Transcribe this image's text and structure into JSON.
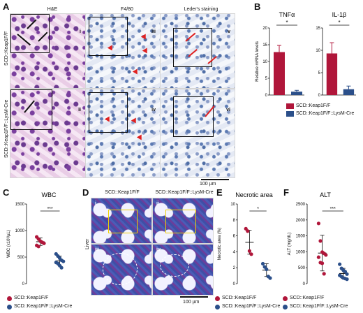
{
  "panels": {
    "A": "A",
    "B": "B",
    "C": "C",
    "D": "D",
    "E": "E",
    "F": "F"
  },
  "panel_a": {
    "col_headers": [
      "H&E",
      "F4/80",
      "Leder's staining"
    ],
    "row_labels": [
      "SCD::Keap1F/F",
      "SCD::Keap1F/F::LysM-Cre"
    ],
    "tile_numerals": [
      "i",
      "iii",
      "v",
      "ii",
      "iv",
      "vi"
    ],
    "scale": "100 µm"
  },
  "panel_d": {
    "col_headers": [
      "SCD::Keap1F/F",
      "SCD::Keap1F/F::LysM-Cre"
    ],
    "side_label": "Liver",
    "tile_numerals": [
      "i",
      "ii",
      "iii",
      "iv"
    ],
    "scale": "100 µm"
  },
  "legend_b": [
    {
      "label": "SCD::Keap1F/F",
      "color": "#b0163a"
    },
    {
      "label": "SCD::Keap1F/F::LysM-Cre",
      "color": "#2b4f8a"
    }
  ],
  "legend_bottom": [
    {
      "label": "SCD::Keap1F/F",
      "color": "#b0163a"
    },
    {
      "label": "SCD::Keap1F/F::LysM-Cre",
      "color": "#2b4f8a"
    }
  ],
  "chart_data": [
    {
      "type": "bar",
      "title": "TNFα",
      "ylabel": "Relative mRNA levels",
      "categories": [
        "SCD::Keap1F/F",
        "SCD::Keap1F/F::LysM-Cre"
      ],
      "values": [
        12.8,
        1.0
      ],
      "errors": [
        2.0,
        0.4
      ],
      "ylim": [
        0,
        20
      ],
      "yticks": [
        "0",
        "5",
        "10",
        "15",
        "20"
      ],
      "significance": "*"
    },
    {
      "type": "bar",
      "title": "IL-1β",
      "ylabel": "",
      "categories": [
        "SCD::Keap1F/F",
        "SCD::Keap1F/F::LysM-Cre"
      ],
      "values": [
        9.3,
        1.3
      ],
      "errors": [
        2.4,
        0.7
      ],
      "ylim": [
        0,
        15
      ],
      "yticks": [
        "0",
        "5",
        "10",
        "15"
      ],
      "significance": "*"
    },
    {
      "type": "scatter",
      "title": "WBC",
      "ylabel": "WBC (x10³/µL)",
      "ylim": [
        0,
        1500
      ],
      "yticks": [
        "0",
        "500",
        "1000",
        "1500"
      ],
      "groups": [
        {
          "name": "SCD::Keap1F/F",
          "values": [
            880,
            840,
            800,
            780,
            760,
            720,
            700
          ],
          "mean": 790,
          "sd": 70
        },
        {
          "name": "SCD::Keap1F/F::LysM-Cre",
          "values": [
            560,
            520,
            480,
            440,
            420,
            400,
            380,
            340,
            300
          ],
          "mean": 430,
          "sd": 90
        }
      ],
      "significance": "***"
    },
    {
      "type": "scatter",
      "title": "Necrotic area",
      "ylabel": "Necrotic area (%)",
      "ylim": [
        0,
        10
      ],
      "yticks": [
        "0",
        "2",
        "4",
        "6",
        "8",
        "10"
      ],
      "groups": [
        {
          "name": "SCD::Keap1F/F",
          "values": [
            6.9,
            6.6,
            4.1,
            3.7
          ],
          "mean": 5.2,
          "sd": 1.5
        },
        {
          "name": "SCD::Keap1F/F::LysM-Cre",
          "values": [
            2.5,
            2.1,
            1.8,
            0.9,
            0.7
          ],
          "mean": 1.7,
          "sd": 0.8
        }
      ],
      "significance": "*"
    },
    {
      "type": "scatter",
      "title": "ALT",
      "ylabel": "ALT (mg/dL)",
      "ylim": [
        0,
        2500
      ],
      "yticks": [
        "0",
        "500",
        "1000",
        "1500",
        "2000",
        "2500"
      ],
      "groups": [
        {
          "name": "SCD::Keap1F/F",
          "values": [
            1890,
            1340,
            990,
            950,
            900,
            830,
            660,
            640,
            310
          ],
          "mean": 960,
          "sd": 560
        },
        {
          "name": "SCD::Keap1F/F::LysM-Cre",
          "values": [
            610,
            480,
            420,
            380,
            300,
            260,
            220,
            180,
            160,
            140
          ],
          "mean": 320,
          "sd": 160
        }
      ],
      "significance": "***"
    }
  ]
}
